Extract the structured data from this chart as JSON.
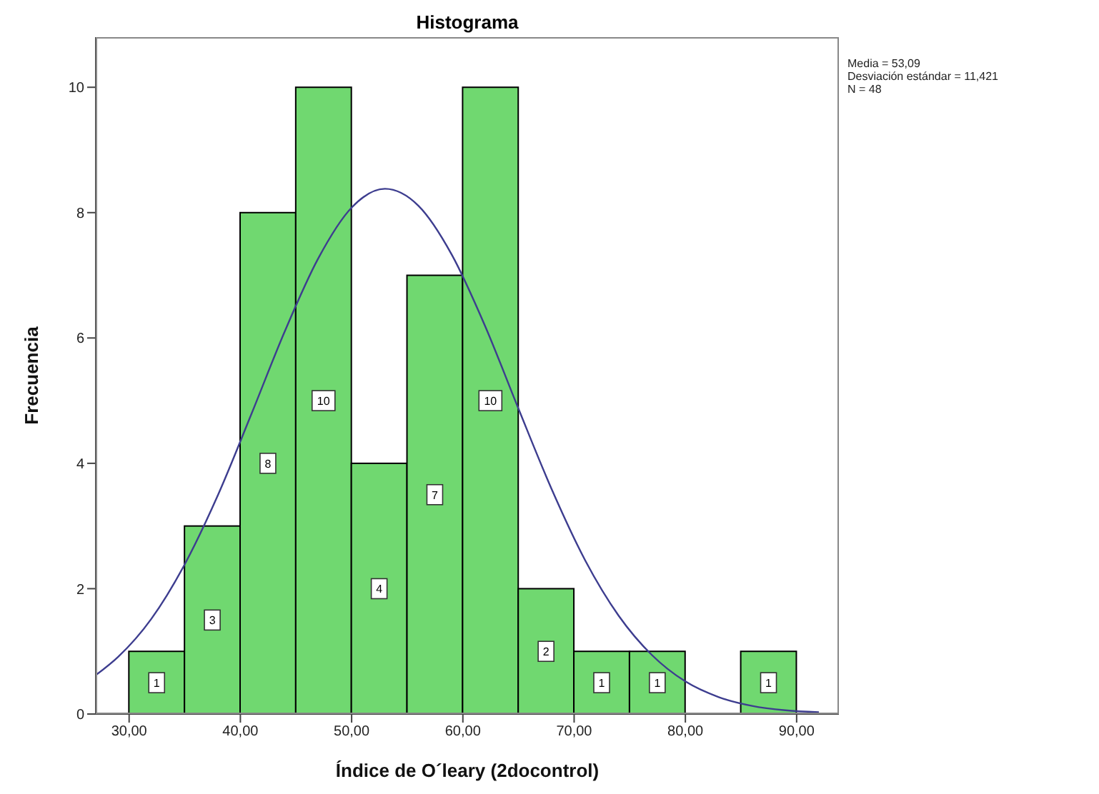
{
  "chart_data": {
    "type": "histogram",
    "title": "Histograma",
    "xlabel": "Índice de O´leary (2docontrol)",
    "ylabel": "Frecuencia",
    "annotations": [
      "Media = 53,09",
      "Desviación estándar = 11,421",
      "N = 48"
    ],
    "bins": [
      30,
      35,
      40,
      45,
      50,
      55,
      60,
      65,
      70,
      75,
      80,
      85,
      90
    ],
    "values": [
      1,
      3,
      8,
      10,
      4,
      7,
      10,
      2,
      1,
      1,
      0,
      1
    ],
    "value_labels": [
      "1",
      "3",
      "8",
      "10",
      "4",
      "7",
      "10",
      "2",
      "1",
      "1",
      null,
      "1"
    ],
    "color": "#70d870",
    "series": [
      {
        "type": "line",
        "color": "#3d3d8f",
        "x": [
          27,
          29,
          32,
          35,
          38,
          41,
          44,
          47,
          50,
          53,
          56,
          59,
          62,
          65,
          68,
          71,
          74,
          77,
          80,
          83,
          86,
          89,
          92
        ],
        "values": [
          0.62,
          0.91,
          1.52,
          2.39,
          3.5,
          4.79,
          6.11,
          7.27,
          8.08,
          8.38,
          8.11,
          7.33,
          6.19,
          4.87,
          3.58,
          2.45,
          1.57,
          0.94,
          0.52,
          0.27,
          0.13,
          0.06,
          0.03
        ]
      }
    ],
    "xlim": [
      27,
      93.8
    ],
    "xticks": [
      {
        "value": 30,
        "label": "30,00"
      },
      {
        "value": 40,
        "label": "40,00"
      },
      {
        "value": 50,
        "label": "50,00"
      },
      {
        "value": 60,
        "label": "60,00"
      },
      {
        "value": 70,
        "label": "70,00"
      },
      {
        "value": 80,
        "label": "80,00"
      },
      {
        "value": 90,
        "label": "90,00"
      }
    ],
    "ylim": [
      0,
      10.8
    ],
    "yticks": [
      0,
      2,
      4,
      6,
      8,
      10
    ],
    "grid": false
  }
}
